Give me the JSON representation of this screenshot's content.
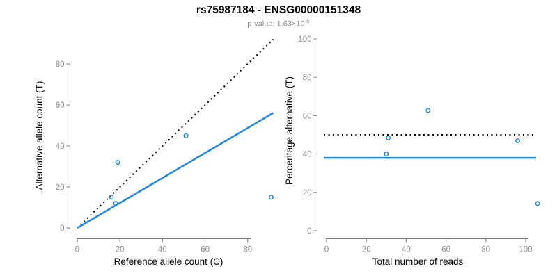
{
  "header": {
    "title": "rs75987184 - ENSG00000151348",
    "pvalue_text": "p-value: 1.63×10",
    "pvalue_exponent": "-5"
  },
  "colors": {
    "accent_blue": "#1E87DC",
    "line_black": "#000000",
    "axis_gray": "#777777",
    "tick_label_gray": "#8A8A8A",
    "axis_title_black": "#000000"
  },
  "chart_data": [
    {
      "type": "scatter",
      "title": "",
      "xlabel": "Reference allele count (C)",
      "ylabel": "Alternative allele count (T)",
      "xlim": [
        0,
        92
      ],
      "ylim": [
        0,
        92
      ],
      "xticks": [
        0,
        20,
        40,
        60,
        80
      ],
      "yticks": [
        0,
        20,
        40,
        60,
        80
      ],
      "grid": false,
      "legend": "none",
      "points": [
        {
          "x": 19,
          "y": 32
        },
        {
          "x": 16,
          "y": 15
        },
        {
          "x": 18,
          "y": 12
        },
        {
          "x": 51,
          "y": 45
        },
        {
          "x": 91,
          "y": 15
        }
      ],
      "lines": [
        {
          "name": "identity-line",
          "style": "dotted",
          "color": "black",
          "from": [
            0,
            0
          ],
          "to": [
            92,
            92
          ]
        },
        {
          "name": "fit-line",
          "style": "solid",
          "color": "blue",
          "from": [
            0,
            0
          ],
          "to": [
            92,
            56.1
          ]
        }
      ]
    },
    {
      "type": "scatter",
      "title": "",
      "xlabel": "Total number of reads",
      "ylabel": "Percentage alternative (T)",
      "xlim": [
        0,
        107
      ],
      "ylim": [
        0,
        100
      ],
      "xticks": [
        0,
        20,
        40,
        60,
        80,
        100
      ],
      "yticks": [
        0,
        20,
        40,
        60,
        80,
        100
      ],
      "grid": false,
      "legend": "none",
      "points": [
        {
          "x": 51,
          "y": 62.7
        },
        {
          "x": 31,
          "y": 48.4
        },
        {
          "x": 30,
          "y": 40
        },
        {
          "x": 96,
          "y": 46.9
        },
        {
          "x": 106,
          "y": 14.2
        }
      ],
      "lines": [
        {
          "name": "expected-50pct-line",
          "style": "dotted",
          "color": "black",
          "y": 50
        },
        {
          "name": "mean-percentage-line",
          "style": "solid",
          "color": "blue",
          "y": 38
        }
      ]
    }
  ]
}
